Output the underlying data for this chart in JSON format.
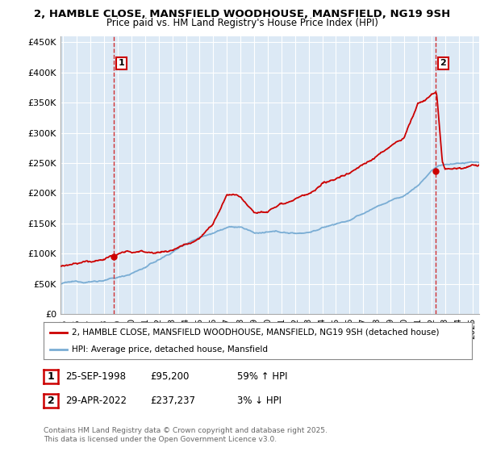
{
  "title_line1": "2, HAMBLE CLOSE, MANSFIELD WOODHOUSE, MANSFIELD, NG19 9SH",
  "title_line2": "Price paid vs. HM Land Registry's House Price Index (HPI)",
  "ylabel_ticks": [
    "£0",
    "£50K",
    "£100K",
    "£150K",
    "£200K",
    "£250K",
    "£300K",
    "£350K",
    "£400K",
    "£450K"
  ],
  "ytick_values": [
    0,
    50000,
    100000,
    150000,
    200000,
    250000,
    300000,
    350000,
    400000,
    450000
  ],
  "ylim": [
    0,
    460000
  ],
  "xlim_start": 1994.8,
  "xlim_end": 2025.5,
  "background_color": "#ffffff",
  "chart_bg_color": "#dce9f5",
  "grid_color": "#ffffff",
  "red_color": "#cc0000",
  "blue_color": "#7aadd4",
  "purchase1_x": 1998.73,
  "purchase1_y": 95200,
  "purchase2_x": 2022.33,
  "purchase2_y": 237237,
  "legend_line1": "2, HAMBLE CLOSE, MANSFIELD WOODHOUSE, MANSFIELD, NG19 9SH (detached house)",
  "legend_line2": "HPI: Average price, detached house, Mansfield",
  "table_row1": [
    "1",
    "25-SEP-1998",
    "£95,200",
    "59% ↑ HPI"
  ],
  "table_row2": [
    "2",
    "29-APR-2022",
    "£237,237",
    "3% ↓ HPI"
  ],
  "footnote": "Contains HM Land Registry data © Crown copyright and database right 2025.\nThis data is licensed under the Open Government Licence v3.0.",
  "xtick_years": [
    1995,
    1996,
    1997,
    1998,
    1999,
    2000,
    2001,
    2002,
    2003,
    2004,
    2005,
    2006,
    2007,
    2008,
    2009,
    2010,
    2011,
    2012,
    2013,
    2014,
    2015,
    2016,
    2017,
    2018,
    2019,
    2020,
    2021,
    2022,
    2023,
    2024,
    2025
  ]
}
